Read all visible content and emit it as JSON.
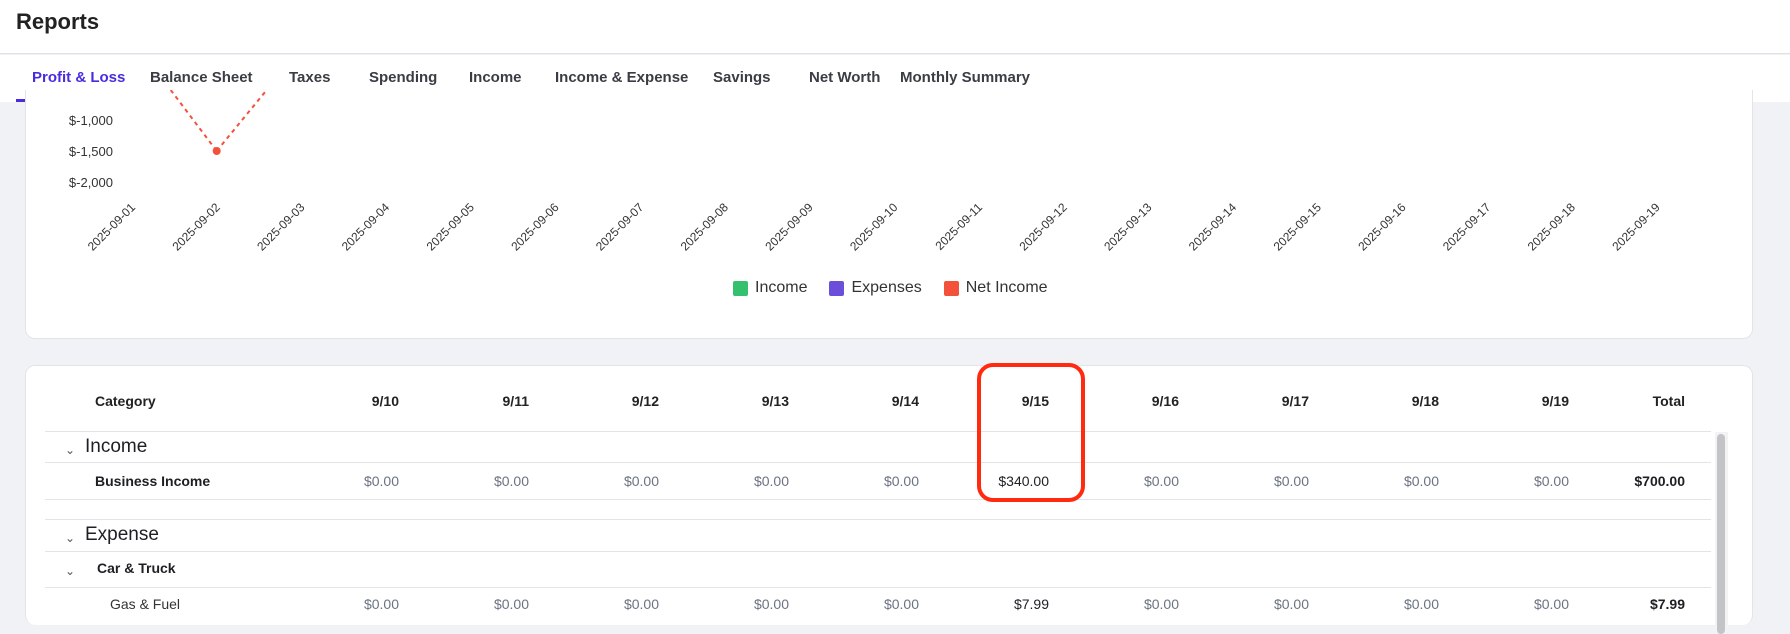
{
  "header": {
    "title": "Reports"
  },
  "tabs": [
    {
      "label": "Profit & Loss",
      "active": true
    },
    {
      "label": "Balance Sheet"
    },
    {
      "label": "Taxes"
    },
    {
      "label": "Spending"
    },
    {
      "label": "Income"
    },
    {
      "label": "Income & Expense"
    },
    {
      "label": "Savings"
    },
    {
      "label": "Net Worth"
    },
    {
      "label": "Monthly Summary"
    }
  ],
  "chart_data": {
    "type": "line",
    "x": [
      "2025-09-01",
      "2025-09-02",
      "2025-09-03",
      "2025-09-04",
      "2025-09-05",
      "2025-09-06",
      "2025-09-07",
      "2025-09-08",
      "2025-09-09",
      "2025-09-10",
      "2025-09-11",
      "2025-09-12",
      "2025-09-13",
      "2025-09-14",
      "2025-09-15",
      "2025-09-16",
      "2025-09-17",
      "2025-09-18",
      "2025-09-19"
    ],
    "y_ticks": [
      "$-1,000",
      "$-1,500",
      "$-2,000"
    ],
    "y_tick_values": [
      -1000,
      -1500,
      -2000
    ],
    "series": [
      {
        "name": "Net Income",
        "color": "#f4513b",
        "style": "dashed",
        "points": [
          {
            "x": "2025-09-02",
            "y": -1500
          }
        ]
      }
    ],
    "legend": {
      "placement": "bottom",
      "items": [
        {
          "name": "Income",
          "color": "#35c06d"
        },
        {
          "name": "Expenses",
          "color": "#6c4fd8"
        },
        {
          "name": "Net Income",
          "color": "#f4513b"
        }
      ]
    }
  },
  "table": {
    "columns": [
      "Category",
      "9/10",
      "9/11",
      "9/12",
      "9/13",
      "9/14",
      "9/15",
      "9/16",
      "9/17",
      "9/18",
      "9/19",
      "Total"
    ],
    "rows": [
      {
        "type": "section",
        "label": "Income"
      },
      {
        "type": "item",
        "label": "Business Income",
        "values": [
          "$0.00",
          "$0.00",
          "$0.00",
          "$0.00",
          "$0.00",
          "$340.00",
          "$0.00",
          "$0.00",
          "$0.00",
          "$0.00"
        ],
        "total": "$700.00"
      },
      {
        "type": "section",
        "label": "Expense"
      },
      {
        "type": "group",
        "label": "Car & Truck"
      },
      {
        "type": "subitem",
        "label": "Gas & Fuel",
        "values": [
          "$0.00",
          "$0.00",
          "$0.00",
          "$0.00",
          "$0.00",
          "$7.99",
          "$0.00",
          "$0.00",
          "$0.00",
          "$0.00"
        ],
        "total": "$7.99"
      }
    ],
    "highlighted_column": "9/15"
  },
  "colors": {
    "accent": "#4b2be0",
    "highlight": "#ff2a10"
  }
}
